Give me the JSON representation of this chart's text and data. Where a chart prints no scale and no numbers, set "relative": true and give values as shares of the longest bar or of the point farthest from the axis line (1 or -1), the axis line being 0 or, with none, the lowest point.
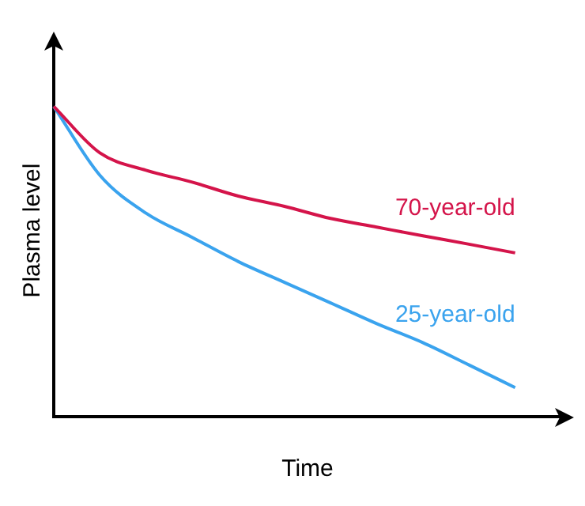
{
  "chart_data": {
    "type": "line",
    "xlabel": "Time",
    "ylabel": "Plasma level",
    "relative": true,
    "legend": false,
    "grid": false,
    "marker": "none",
    "line_style": "solid",
    "categories": [
      null,
      null,
      null,
      null,
      null,
      null,
      null,
      null,
      null,
      null,
      null,
      null
    ],
    "series": [
      {
        "name": "70-year-old",
        "color": "#d4144a",
        "values": [
          1,
          0.85,
          0.794,
          0.756,
          0.711,
          0.678,
          0.639,
          0.611,
          0.583,
          0.556,
          0.528,
          null
        ]
      },
      {
        "name": "25-year-old",
        "color": "#3aa3ee",
        "values": [
          1,
          0.778,
          0.656,
          0.578,
          0.5,
          0.433,
          0.367,
          0.3,
          0.239,
          0.167,
          0.094,
          null
        ]
      }
    ]
  }
}
